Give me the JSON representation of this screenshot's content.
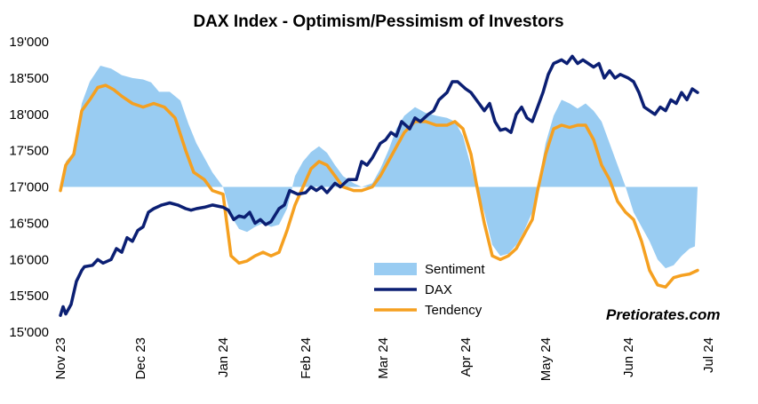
{
  "chart_data": {
    "type": "line",
    "title": "DAX Index - Optimism/Pessimism of Investors",
    "xlabel": "",
    "ylabel": "",
    "ylim": [
      15000,
      19000
    ],
    "yticks": [
      "15'000",
      "15'500",
      "16'000",
      "16'500",
      "17'000",
      "17'500",
      "18'000",
      "18'500",
      "19'000"
    ],
    "ytick_values": [
      15000,
      15500,
      16000,
      16500,
      17000,
      17500,
      18000,
      18500,
      19000
    ],
    "xlim": [
      "2023-11-01",
      "2024-07-01"
    ],
    "xticks": [
      "Nov 23",
      "Dec 23",
      "Jan 24",
      "Feb 24",
      "Mar 24",
      "Apr 24",
      "May 24",
      "Jun 24",
      "Jul 24"
    ],
    "xtick_dates": [
      "2023-11-01",
      "2023-12-01",
      "2024-01-01",
      "2024-02-01",
      "2024-03-01",
      "2024-04-01",
      "2024-05-01",
      "2024-06-01",
      "2024-07-01"
    ],
    "baseline": 17000,
    "grid": false,
    "legend_position": "bottom-center",
    "colors": {
      "sentiment": "#99ccf2",
      "dax": "#0b1f73",
      "tendency": "#f5a020"
    },
    "series": [
      {
        "name": "Sentiment",
        "type": "area",
        "points": [
          [
            "2023-11-01",
            17000
          ],
          [
            "2023-11-03",
            17350
          ],
          [
            "2023-11-06",
            17480
          ],
          [
            "2023-11-09",
            18150
          ],
          [
            "2023-11-12",
            18450
          ],
          [
            "2023-11-16",
            18670
          ],
          [
            "2023-11-20",
            18630
          ],
          [
            "2023-11-24",
            18540
          ],
          [
            "2023-11-28",
            18500
          ],
          [
            "2023-12-02",
            18480
          ],
          [
            "2023-12-05",
            18440
          ],
          [
            "2023-12-08",
            18310
          ],
          [
            "2023-12-12",
            18310
          ],
          [
            "2023-12-16",
            18190
          ],
          [
            "2023-12-19",
            17870
          ],
          [
            "2023-12-22",
            17600
          ],
          [
            "2023-12-25",
            17400
          ],
          [
            "2023-12-28",
            17200
          ],
          [
            "2024-01-01",
            17000
          ],
          [
            "2024-01-04",
            16600
          ],
          [
            "2024-01-07",
            16420
          ],
          [
            "2024-01-10",
            16380
          ],
          [
            "2024-01-13",
            16450
          ],
          [
            "2024-01-16",
            16500
          ],
          [
            "2024-01-19",
            16450
          ],
          [
            "2024-01-22",
            16480
          ],
          [
            "2024-01-25",
            16700
          ],
          [
            "2024-01-28",
            17150
          ],
          [
            "2024-01-31",
            17350
          ],
          [
            "2024-02-03",
            17480
          ],
          [
            "2024-02-06",
            17560
          ],
          [
            "2024-02-09",
            17470
          ],
          [
            "2024-02-12",
            17300
          ],
          [
            "2024-02-15",
            17150
          ],
          [
            "2024-02-19",
            17050
          ],
          [
            "2024-02-22",
            17000
          ],
          [
            "2024-02-26",
            17050
          ],
          [
            "2024-02-29",
            17250
          ],
          [
            "2024-03-03",
            17500
          ],
          [
            "2024-03-06",
            17800
          ],
          [
            "2024-03-09",
            17980
          ],
          [
            "2024-03-13",
            18100
          ],
          [
            "2024-03-17",
            18020
          ],
          [
            "2024-03-21",
            17980
          ],
          [
            "2024-03-25",
            17950
          ],
          [
            "2024-03-28",
            17900
          ],
          [
            "2024-03-31",
            17700
          ],
          [
            "2024-04-03",
            17280
          ],
          [
            "2024-04-05",
            17000
          ],
          [
            "2024-04-08",
            16650
          ],
          [
            "2024-04-11",
            16200
          ],
          [
            "2024-04-14",
            16050
          ],
          [
            "2024-04-17",
            16080
          ],
          [
            "2024-04-20",
            16200
          ],
          [
            "2024-04-23",
            16400
          ],
          [
            "2024-04-26",
            16650
          ],
          [
            "2024-04-28",
            17000
          ],
          [
            "2024-05-01",
            17600
          ],
          [
            "2024-05-04",
            17980
          ],
          [
            "2024-05-07",
            18200
          ],
          [
            "2024-05-10",
            18150
          ],
          [
            "2024-05-13",
            18080
          ],
          [
            "2024-05-16",
            18150
          ],
          [
            "2024-05-19",
            18050
          ],
          [
            "2024-05-22",
            17900
          ],
          [
            "2024-05-25",
            17600
          ],
          [
            "2024-05-28",
            17300
          ],
          [
            "2024-05-31",
            17000
          ],
          [
            "2024-06-03",
            16650
          ],
          [
            "2024-06-06",
            16450
          ],
          [
            "2024-06-09",
            16250
          ],
          [
            "2024-06-12",
            16000
          ],
          [
            "2024-06-15",
            15880
          ],
          [
            "2024-06-18",
            15920
          ],
          [
            "2024-06-21",
            16050
          ],
          [
            "2024-06-24",
            16150
          ],
          [
            "2024-06-26",
            16180
          ],
          [
            "2024-06-27",
            17000
          ]
        ]
      },
      {
        "name": "DAX",
        "type": "line",
        "points": [
          [
            "2023-11-01",
            15230
          ],
          [
            "2023-11-02",
            15350
          ],
          [
            "2023-11-03",
            15250
          ],
          [
            "2023-11-05",
            15380
          ],
          [
            "2023-11-07",
            15700
          ],
          [
            "2023-11-09",
            15850
          ],
          [
            "2023-11-10",
            15900
          ],
          [
            "2023-11-13",
            15920
          ],
          [
            "2023-11-15",
            16000
          ],
          [
            "2023-11-17",
            15950
          ],
          [
            "2023-11-20",
            16000
          ],
          [
            "2023-11-22",
            16150
          ],
          [
            "2023-11-24",
            16100
          ],
          [
            "2023-11-26",
            16300
          ],
          [
            "2023-11-28",
            16250
          ],
          [
            "2023-11-30",
            16400
          ],
          [
            "2023-12-02",
            16450
          ],
          [
            "2023-12-04",
            16650
          ],
          [
            "2023-12-06",
            16700
          ],
          [
            "2023-12-09",
            16750
          ],
          [
            "2023-12-12",
            16780
          ],
          [
            "2023-12-15",
            16750
          ],
          [
            "2023-12-18",
            16700
          ],
          [
            "2023-12-20",
            16680
          ],
          [
            "2023-12-22",
            16700
          ],
          [
            "2023-12-25",
            16720
          ],
          [
            "2023-12-28",
            16750
          ],
          [
            "2024-01-01",
            16720
          ],
          [
            "2024-01-03",
            16680
          ],
          [
            "2024-01-05",
            16550
          ],
          [
            "2024-01-07",
            16600
          ],
          [
            "2024-01-09",
            16580
          ],
          [
            "2024-01-11",
            16650
          ],
          [
            "2024-01-13",
            16500
          ],
          [
            "2024-01-15",
            16550
          ],
          [
            "2024-01-17",
            16480
          ],
          [
            "2024-01-19",
            16520
          ],
          [
            "2024-01-22",
            16700
          ],
          [
            "2024-01-24",
            16750
          ],
          [
            "2024-01-26",
            16950
          ],
          [
            "2024-01-29",
            16900
          ],
          [
            "2024-02-01",
            16920
          ],
          [
            "2024-02-03",
            17000
          ],
          [
            "2024-02-05",
            16950
          ],
          [
            "2024-02-07",
            17000
          ],
          [
            "2024-02-09",
            16920
          ],
          [
            "2024-02-12",
            17050
          ],
          [
            "2024-02-14",
            17000
          ],
          [
            "2024-02-17",
            17100
          ],
          [
            "2024-02-20",
            17100
          ],
          [
            "2024-02-22",
            17350
          ],
          [
            "2024-02-24",
            17300
          ],
          [
            "2024-02-26",
            17400
          ],
          [
            "2024-02-29",
            17600
          ],
          [
            "2024-03-02",
            17650
          ],
          [
            "2024-03-04",
            17750
          ],
          [
            "2024-03-06",
            17700
          ],
          [
            "2024-03-08",
            17900
          ],
          [
            "2024-03-11",
            17800
          ],
          [
            "2024-03-13",
            17950
          ],
          [
            "2024-03-15",
            17900
          ],
          [
            "2024-03-18",
            18000
          ],
          [
            "2024-03-20",
            18050
          ],
          [
            "2024-03-22",
            18200
          ],
          [
            "2024-03-25",
            18300
          ],
          [
            "2024-03-27",
            18450
          ],
          [
            "2024-03-29",
            18450
          ],
          [
            "2024-04-01",
            18350
          ],
          [
            "2024-04-03",
            18300
          ],
          [
            "2024-04-05",
            18200
          ],
          [
            "2024-04-08",
            18050
          ],
          [
            "2024-04-10",
            18150
          ],
          [
            "2024-04-12",
            17900
          ],
          [
            "2024-04-14",
            17780
          ],
          [
            "2024-04-16",
            17800
          ],
          [
            "2024-04-18",
            17750
          ],
          [
            "2024-04-20",
            18000
          ],
          [
            "2024-04-22",
            18100
          ],
          [
            "2024-04-24",
            17950
          ],
          [
            "2024-04-26",
            17900
          ],
          [
            "2024-04-28",
            18100
          ],
          [
            "2024-04-30",
            18300
          ],
          [
            "2024-05-02",
            18550
          ],
          [
            "2024-05-04",
            18700
          ],
          [
            "2024-05-07",
            18750
          ],
          [
            "2024-05-09",
            18700
          ],
          [
            "2024-05-11",
            18800
          ],
          [
            "2024-05-13",
            18700
          ],
          [
            "2024-05-15",
            18750
          ],
          [
            "2024-05-17",
            18700
          ],
          [
            "2024-05-19",
            18650
          ],
          [
            "2024-05-21",
            18700
          ],
          [
            "2024-05-23",
            18500
          ],
          [
            "2024-05-25",
            18600
          ],
          [
            "2024-05-27",
            18500
          ],
          [
            "2024-05-29",
            18550
          ],
          [
            "2024-06-01",
            18500
          ],
          [
            "2024-06-03",
            18450
          ],
          [
            "2024-06-05",
            18300
          ],
          [
            "2024-06-07",
            18100
          ],
          [
            "2024-06-09",
            18050
          ],
          [
            "2024-06-11",
            18000
          ],
          [
            "2024-06-13",
            18100
          ],
          [
            "2024-06-15",
            18050
          ],
          [
            "2024-06-17",
            18200
          ],
          [
            "2024-06-19",
            18150
          ],
          [
            "2024-06-21",
            18300
          ],
          [
            "2024-06-23",
            18200
          ],
          [
            "2024-06-25",
            18350
          ],
          [
            "2024-06-27",
            18300
          ]
        ]
      },
      {
        "name": "Tendency",
        "type": "line",
        "points": [
          [
            "2023-11-01",
            16950
          ],
          [
            "2023-11-03",
            17300
          ],
          [
            "2023-11-06",
            17450
          ],
          [
            "2023-11-09",
            18050
          ],
          [
            "2023-11-12",
            18200
          ],
          [
            "2023-11-15",
            18370
          ],
          [
            "2023-11-18",
            18400
          ],
          [
            "2023-11-21",
            18340
          ],
          [
            "2023-11-24",
            18250
          ],
          [
            "2023-11-28",
            18150
          ],
          [
            "2023-12-02",
            18100
          ],
          [
            "2023-12-06",
            18150
          ],
          [
            "2023-12-10",
            18100
          ],
          [
            "2023-12-14",
            17950
          ],
          [
            "2023-12-18",
            17500
          ],
          [
            "2023-12-21",
            17200
          ],
          [
            "2023-12-25",
            17100
          ],
          [
            "2023-12-28",
            16950
          ],
          [
            "2024-01-01",
            16900
          ],
          [
            "2024-01-04",
            16050
          ],
          [
            "2024-01-07",
            15950
          ],
          [
            "2024-01-10",
            15980
          ],
          [
            "2024-01-13",
            16050
          ],
          [
            "2024-01-16",
            16100
          ],
          [
            "2024-01-19",
            16050
          ],
          [
            "2024-01-22",
            16100
          ],
          [
            "2024-01-25",
            16400
          ],
          [
            "2024-01-28",
            16750
          ],
          [
            "2024-01-31",
            17000
          ],
          [
            "2024-02-03",
            17250
          ],
          [
            "2024-02-06",
            17350
          ],
          [
            "2024-02-09",
            17300
          ],
          [
            "2024-02-12",
            17150
          ],
          [
            "2024-02-15",
            17000
          ],
          [
            "2024-02-19",
            16950
          ],
          [
            "2024-02-22",
            16950
          ],
          [
            "2024-02-26",
            17000
          ],
          [
            "2024-02-29",
            17150
          ],
          [
            "2024-03-03",
            17350
          ],
          [
            "2024-03-06",
            17550
          ],
          [
            "2024-03-09",
            17750
          ],
          [
            "2024-03-13",
            17900
          ],
          [
            "2024-03-17",
            17900
          ],
          [
            "2024-03-21",
            17850
          ],
          [
            "2024-03-25",
            17850
          ],
          [
            "2024-03-28",
            17900
          ],
          [
            "2024-03-31",
            17800
          ],
          [
            "2024-04-03",
            17450
          ],
          [
            "2024-04-05",
            17050
          ],
          [
            "2024-04-08",
            16500
          ],
          [
            "2024-04-11",
            16050
          ],
          [
            "2024-04-14",
            16000
          ],
          [
            "2024-04-17",
            16050
          ],
          [
            "2024-04-20",
            16150
          ],
          [
            "2024-04-23",
            16350
          ],
          [
            "2024-04-26",
            16550
          ],
          [
            "2024-04-28",
            16950
          ],
          [
            "2024-05-01",
            17450
          ],
          [
            "2024-05-04",
            17800
          ],
          [
            "2024-05-07",
            17850
          ],
          [
            "2024-05-10",
            17820
          ],
          [
            "2024-05-13",
            17850
          ],
          [
            "2024-05-16",
            17850
          ],
          [
            "2024-05-19",
            17650
          ],
          [
            "2024-05-22",
            17300
          ],
          [
            "2024-05-25",
            17100
          ],
          [
            "2024-05-28",
            16800
          ],
          [
            "2024-05-31",
            16650
          ],
          [
            "2024-06-03",
            16550
          ],
          [
            "2024-06-06",
            16250
          ],
          [
            "2024-06-09",
            15850
          ],
          [
            "2024-06-12",
            15650
          ],
          [
            "2024-06-15",
            15620
          ],
          [
            "2024-06-18",
            15750
          ],
          [
            "2024-06-21",
            15780
          ],
          [
            "2024-06-24",
            15800
          ],
          [
            "2024-06-27",
            15850
          ]
        ]
      }
    ]
  },
  "watermark": "Pretiorates.com"
}
